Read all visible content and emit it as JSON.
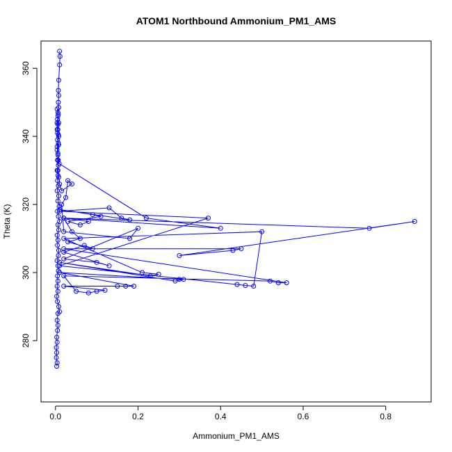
{
  "chart_data": {
    "type": "line",
    "title": "ATOM1 Northbound Ammonium_PM1_AMS",
    "xlabel": "Ammonium_PM1_AMS",
    "ylabel": "Theta (K)",
    "xlim": [
      -0.035,
      0.91
    ],
    "ylim": [
      262,
      368
    ],
    "x_ticks": [
      0.0,
      0.2,
      0.4,
      0.6,
      0.8
    ],
    "x_tick_labels": [
      "0.0",
      "0.2",
      "0.4",
      "0.6",
      "0.8"
    ],
    "y_ticks": [
      280,
      300,
      320,
      340,
      360
    ],
    "y_tick_labels": [
      "280",
      "300",
      "320",
      "340",
      "360"
    ],
    "marker": "open-circle",
    "grid": false,
    "legend": "none",
    "series": [
      {
        "color": "#0000ff",
        "points": [
          [
            0.003,
            272.5
          ],
          [
            0.004,
            273.5
          ],
          [
            0.002,
            275.0
          ],
          [
            0.003,
            276.5
          ],
          [
            0.002,
            278.0
          ],
          [
            0.004,
            279.5
          ],
          [
            0.003,
            281.0
          ],
          [
            0.005,
            283.0
          ],
          [
            0.006,
            284.5
          ],
          [
            0.004,
            286.0
          ],
          [
            0.006,
            288.0
          ],
          [
            0.01,
            288.5
          ],
          [
            0.008,
            290.0
          ],
          [
            0.005,
            291.5
          ],
          [
            0.003,
            293.0
          ],
          [
            0.006,
            294.5
          ],
          [
            0.004,
            296.0
          ],
          [
            0.006,
            297.5
          ],
          [
            0.005,
            299.0
          ],
          [
            0.007,
            300.5
          ],
          [
            0.006,
            302.0
          ],
          [
            0.004,
            303.5
          ],
          [
            0.007,
            305.0
          ],
          [
            0.008,
            306.5
          ],
          [
            0.005,
            308.0
          ],
          [
            0.006,
            309.5
          ],
          [
            0.004,
            311.0
          ],
          [
            0.008,
            312.5
          ],
          [
            0.006,
            314.0
          ],
          [
            0.01,
            315.0
          ],
          [
            0.007,
            316.5
          ],
          [
            0.005,
            318.0
          ],
          [
            0.009,
            319.5
          ],
          [
            0.006,
            321.0
          ],
          [
            0.008,
            322.5
          ],
          [
            0.004,
            324.0
          ],
          [
            0.007,
            325.5
          ],
          [
            0.005,
            327.0
          ],
          [
            0.006,
            328.5
          ],
          [
            0.004,
            330.0
          ],
          [
            0.007,
            331.5
          ],
          [
            0.005,
            333.0
          ],
          [
            0.006,
            334.5
          ],
          [
            0.004,
            336.0
          ],
          [
            0.008,
            337.5
          ],
          [
            0.005,
            339.0
          ],
          [
            0.007,
            340.5
          ],
          [
            0.004,
            342.0
          ],
          [
            0.006,
            343.5
          ],
          [
            0.005,
            345.0
          ],
          [
            0.007,
            346.5
          ],
          [
            0.004,
            348.0
          ],
          [
            0.006,
            347.0
          ],
          [
            0.008,
            344.0
          ],
          [
            0.005,
            341.0
          ],
          [
            0.007,
            338.0
          ],
          [
            0.006,
            335.0
          ],
          [
            0.009,
            332.0
          ],
          [
            0.22,
            316.0
          ],
          [
            0.4,
            313.0
          ],
          [
            0.02,
            316.0
          ],
          [
            0.76,
            313.0
          ],
          [
            0.87,
            315.0
          ],
          [
            0.3,
            305.0
          ],
          [
            0.43,
            306.5
          ],
          [
            0.45,
            307.0
          ],
          [
            0.02,
            307.0
          ],
          [
            0.56,
            297.0
          ],
          [
            0.54,
            297.0
          ],
          [
            0.52,
            297.5
          ],
          [
            0.02,
            299.0
          ],
          [
            0.05,
            294.5
          ],
          [
            0.08,
            294.0
          ],
          [
            0.1,
            294.5
          ],
          [
            0.12,
            294.8
          ],
          [
            0.02,
            296.0
          ],
          [
            0.15,
            296.0
          ],
          [
            0.17,
            296.0
          ],
          [
            0.19,
            296.0
          ],
          [
            0.01,
            300.0
          ],
          [
            0.3,
            298.0
          ],
          [
            0.31,
            298.0
          ],
          [
            0.29,
            297.5
          ],
          [
            0.01,
            303.0
          ],
          [
            0.23,
            299.0
          ],
          [
            0.25,
            299.5
          ],
          [
            0.21,
            300.0
          ],
          [
            0.02,
            310.0
          ],
          [
            0.5,
            312.0
          ],
          [
            0.48,
            296.0
          ],
          [
            0.46,
            296.2
          ],
          [
            0.44,
            296.5
          ],
          [
            0.01,
            302.0
          ],
          [
            0.37,
            316.0
          ],
          [
            0.01,
            318.0
          ],
          [
            0.13,
            319.0
          ],
          [
            0.16,
            316.0
          ],
          [
            0.18,
            315.5
          ],
          [
            0.01,
            318.5
          ],
          [
            0.09,
            317.0
          ],
          [
            0.11,
            316.5
          ],
          [
            0.03,
            315.0
          ],
          [
            0.06,
            314.0
          ],
          [
            0.08,
            315.0
          ],
          [
            0.02,
            316.0
          ],
          [
            0.04,
            312.0
          ],
          [
            0.06,
            310.0
          ],
          [
            0.03,
            309.0
          ],
          [
            0.09,
            307.0
          ],
          [
            0.07,
            308.0
          ],
          [
            0.02,
            306.0
          ],
          [
            0.13,
            302.0
          ],
          [
            0.1,
            303.0
          ],
          [
            0.02,
            304.0
          ],
          [
            0.2,
            313.0
          ],
          [
            0.18,
            310.0
          ],
          [
            0.02,
            312.0
          ],
          [
            0.015,
            320.0
          ],
          [
            0.025,
            322.0
          ],
          [
            0.03,
            327.0
          ],
          [
            0.04,
            326.0
          ],
          [
            0.015,
            324.0
          ],
          [
            0.01,
            326.0
          ],
          [
            0.008,
            328.0
          ],
          [
            0.006,
            330.0
          ],
          [
            0.007,
            333.0
          ],
          [
            0.004,
            337.0
          ],
          [
            0.008,
            340.0
          ],
          [
            0.006,
            342.0
          ],
          [
            0.004,
            344.0
          ],
          [
            0.006,
            346.0
          ],
          [
            0.008,
            348.5
          ],
          [
            0.007,
            350.0
          ],
          [
            0.008,
            352.0
          ],
          [
            0.007,
            353.5
          ],
          [
            0.008,
            356.5
          ],
          [
            0.01,
            361.0
          ],
          [
            0.011,
            363.5
          ],
          [
            0.01,
            365.0
          ]
        ]
      }
    ]
  }
}
